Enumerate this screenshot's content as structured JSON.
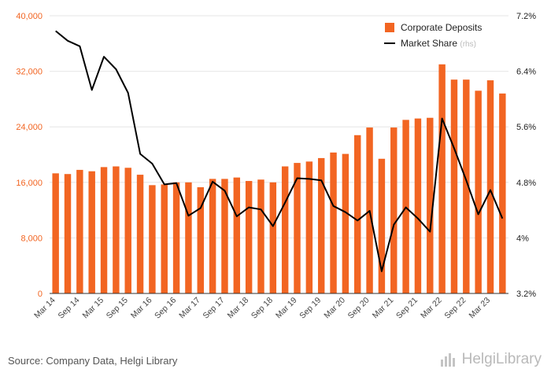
{
  "chart_data": {
    "type": "bar",
    "x": [
      "Mar 14",
      "Jun 14",
      "Sep 14",
      "Dec 14",
      "Mar 15",
      "Jun 15",
      "Sep 15",
      "Dec 15",
      "Mar 16",
      "Jun 16",
      "Sep 16",
      "Dec 16",
      "Mar 17",
      "Jun 17",
      "Sep 17",
      "Dec 17",
      "Mar 18",
      "Jun 18",
      "Sep 18",
      "Dec 18",
      "Mar 19",
      "Jun 19",
      "Sep 19",
      "Dec 19",
      "Mar 20",
      "Jun 20",
      "Sep 20",
      "Dec 20",
      "Mar 21",
      "Jun 21",
      "Sep 21",
      "Dec 21",
      "Mar 22",
      "Jun 22",
      "Sep 22",
      "Dec 22",
      "Mar 23",
      "Jun 23"
    ],
    "x_tick_labels": [
      "Mar 14",
      "Sep 14",
      "Mar 15",
      "Sep 15",
      "Mar 16",
      "Sep 16",
      "Mar 17",
      "Sep 17",
      "Mar 18",
      "Sep 18",
      "Mar 19",
      "Sep 19",
      "Mar 20",
      "Sep 20",
      "Mar 21",
      "Sep 21",
      "Mar 22",
      "Sep 22",
      "Mar 23"
    ],
    "series": [
      {
        "name": "Corporate Deposits",
        "type": "bar",
        "axis": "left",
        "color": "#f26522",
        "values": [
          17300,
          17200,
          17800,
          17600,
          18200,
          18300,
          18100,
          17100,
          15600,
          15700,
          16000,
          16000,
          15300,
          16500,
          16500,
          16700,
          16200,
          16400,
          16000,
          18300,
          18800,
          19000,
          19500,
          20300,
          20100,
          22800,
          23900,
          19400,
          23900,
          25000,
          25200,
          25300,
          33000,
          30800,
          30800,
          29200,
          30700,
          28800
        ]
      },
      {
        "name": "Market Share",
        "name_suffix": "(rhs)",
        "type": "line",
        "axis": "right",
        "color": "#000000",
        "values": [
          6.98,
          6.84,
          6.76,
          6.13,
          6.61,
          6.43,
          6.09,
          5.21,
          5.07,
          4.77,
          4.79,
          4.32,
          4.43,
          4.81,
          4.68,
          4.31,
          4.44,
          4.41,
          4.17,
          4.51,
          4.86,
          4.85,
          4.83,
          4.46,
          4.37,
          4.25,
          4.39,
          3.52,
          4.19,
          4.44,
          4.28,
          4.09,
          5.72,
          5.29,
          4.83,
          4.34,
          4.69,
          4.28
        ]
      }
    ],
    "y_left": {
      "ylim": [
        0,
        40000
      ],
      "ticks": [
        "0",
        "8,000",
        "16,000",
        "24,000",
        "32,000",
        "40,000"
      ]
    },
    "y_right": {
      "ylim": [
        3.2,
        7.2
      ],
      "ticks": [
        "3.2%",
        "4%",
        "4.8%",
        "5.6%",
        "6.4%",
        "7.2%"
      ]
    },
    "grid": true,
    "legend_position": "top-right",
    "colors": {
      "bar": "#f26522",
      "line": "#000000",
      "left_ticks": "#f26522",
      "grid": "#e6e6e6",
      "axis": "#333333"
    }
  },
  "footer": {
    "source": "Source: Company Data, Helgi Library",
    "logo_text": "HelgiLibrary",
    "logo_icon": "bar-chart-icon"
  }
}
